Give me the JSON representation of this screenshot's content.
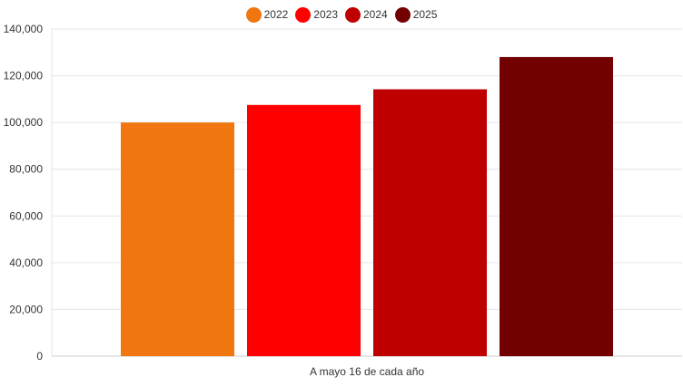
{
  "chart_data": {
    "type": "bar",
    "categories": [
      "A mayo 16 de cada año"
    ],
    "series": [
      {
        "name": "2022",
        "values": [
          100000
        ],
        "color": "#f0760f"
      },
      {
        "name": "2023",
        "values": [
          107500
        ],
        "color": "#ff0000"
      },
      {
        "name": "2024",
        "values": [
          114200
        ],
        "color": "#bf0000"
      },
      {
        "name": "2025",
        "values": [
          128000
        ],
        "color": "#720000"
      }
    ],
    "xlabel": "",
    "ylabel": "",
    "ylim": [
      0,
      140000
    ],
    "yticks": [
      "0",
      "20,000",
      "40,000",
      "60,000",
      "80,000",
      "100,000",
      "120,000",
      "140,000"
    ],
    "grid": true,
    "legend_position": "top-center"
  }
}
